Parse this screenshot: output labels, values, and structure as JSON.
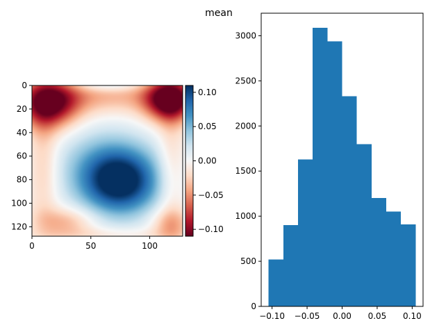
{
  "figure": {
    "title": "mean"
  },
  "chart_data": [
    {
      "type": "heatmap",
      "title": "",
      "xlabel": "",
      "ylabel": "",
      "xlim": [
        0,
        128
      ],
      "ylim": [
        128,
        0
      ],
      "xticks": [
        0,
        50,
        100
      ],
      "xtick_labels": [
        "0",
        "50",
        "100"
      ],
      "yticks": [
        0,
        20,
        40,
        60,
        80,
        100,
        120
      ],
      "ytick_labels": [
        "0",
        "20",
        "40",
        "60",
        "80",
        "100",
        "120"
      ],
      "colormap": "RdBu",
      "vmin": -0.11,
      "vmax": 0.11,
      "colorbar_ticks": [
        0.1,
        0.05,
        0.0,
        -0.05,
        -0.1
      ],
      "colorbar_tick_labels": [
        "0.10",
        "0.05",
        "0.00",
        "−0.05",
        "−0.10"
      ],
      "field_features": [
        {
          "x": 14,
          "y": 15,
          "value": -0.1
        },
        {
          "x": 115,
          "y": 12,
          "value": -0.11
        },
        {
          "x": 75,
          "y": 82,
          "value": 0.11
        },
        {
          "x": 28,
          "y": 116,
          "value": -0.035
        },
        {
          "x": 118,
          "y": 118,
          "value": -0.035
        },
        {
          "x": 64,
          "y": 0,
          "value": 0.01
        },
        {
          "x": 12,
          "y": 65,
          "value": -0.025
        }
      ],
      "grid": false
    },
    {
      "type": "bar",
      "subtype": "histogram",
      "title": "",
      "xlabel": "",
      "ylabel": "",
      "bin_edges": [
        -0.105,
        -0.084,
        -0.063,
        -0.042,
        -0.021,
        0.0,
        0.021,
        0.042,
        0.063,
        0.084,
        0.105
      ],
      "values": [
        520,
        900,
        1630,
        3090,
        2940,
        2330,
        1800,
        1200,
        1050,
        910
      ],
      "xlim": [
        -0.1155,
        0.1155
      ],
      "ylim": [
        0,
        3250
      ],
      "xticks": [
        -0.1,
        -0.05,
        0.0,
        0.05,
        0.1
      ],
      "xtick_labels": [
        "−0.10",
        "−0.05",
        "0.00",
        "0.05",
        "0.10"
      ],
      "yticks": [
        0,
        500,
        1000,
        1500,
        2000,
        2500,
        3000
      ],
      "ytick_labels": [
        "0",
        "500",
        "1000",
        "1500",
        "2000",
        "2500",
        "3000"
      ],
      "bar_color": "#1f77b4",
      "grid": false
    }
  ]
}
